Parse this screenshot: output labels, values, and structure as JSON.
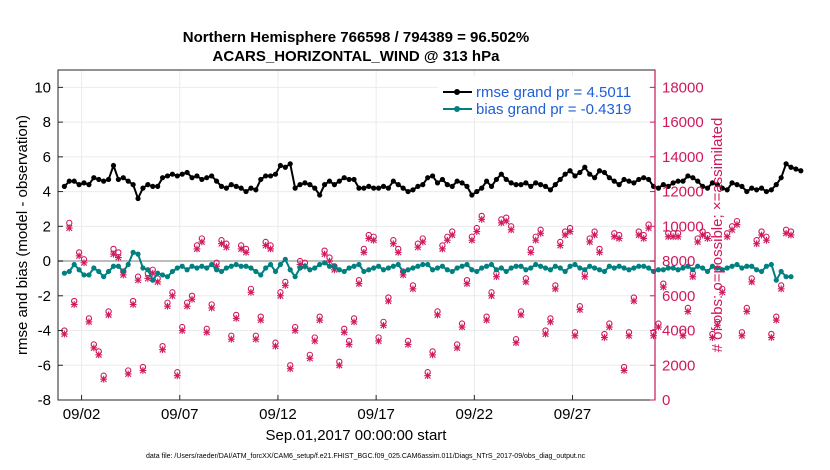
{
  "chart_data": {
    "type": "line",
    "title": "Northern Hemisphere 766598 / 794389 = 96.502%",
    "subtitle": "ACARS_HORIZONTAL_WIND @ 313 hPa",
    "xlabel": "Sep.01,2017 00:00:00 start",
    "ylabel_left": "rmse and bias (model - observation)",
    "ylabel_right": "# of obs: o=possible; ×=assimilated",
    "footer": "data file: /Users/raeder/DAI/ATM_forcXX/CAM6_setup/f.e21.FHIST_BGC.f09_025.CAM6assim.011/Diags_NTrS_2017-09/obs_diag_output.nc",
    "xlim": [
      0.8,
      31.2
    ],
    "ylim_left": [
      -8,
      11
    ],
    "ylim_right": [
      0,
      19000
    ],
    "grid": true,
    "legend_position": "top-right",
    "x_ticks": [
      {
        "value": 2,
        "label": "09/02"
      },
      {
        "value": 7,
        "label": "09/07"
      },
      {
        "value": 12,
        "label": "09/12"
      },
      {
        "value": 17,
        "label": "09/17"
      },
      {
        "value": 22,
        "label": "09/22"
      },
      {
        "value": 27,
        "label": "09/27"
      }
    ],
    "y_ticks_left": [
      -8,
      -6,
      -4,
      -2,
      0,
      2,
      4,
      6,
      8,
      10
    ],
    "y_ticks_right": [
      0,
      2000,
      4000,
      6000,
      8000,
      10000,
      12000,
      14000,
      16000,
      18000
    ],
    "x_start": 1.125,
    "x_step": 0.25,
    "series": [
      {
        "name": "rmse grand pr = 4.5011",
        "color": "#000000",
        "axis": "left",
        "values": [
          4.3,
          4.6,
          4.6,
          4.4,
          4.5,
          4.4,
          4.8,
          4.7,
          4.6,
          4.7,
          5.5,
          4.7,
          4.8,
          4.6,
          4.4,
          3.6,
          4.2,
          4.4,
          4.3,
          4.3,
          4.8,
          4.9,
          5.0,
          4.9,
          5.0,
          5.1,
          4.8,
          4.9,
          4.7,
          4.8,
          4.9,
          4.6,
          4.3,
          4.2,
          4.4,
          4.3,
          4.2,
          4.0,
          4.2,
          4.1,
          4.7,
          4.9,
          4.9,
          5.0,
          5.5,
          5.4,
          5.6,
          4.2,
          4.4,
          4.5,
          4.4,
          4.2,
          3.8,
          4.4,
          4.6,
          4.4,
          4.6,
          4.8,
          4.7,
          4.7,
          4.2,
          4.2,
          4.3,
          4.2,
          4.2,
          4.3,
          4.2,
          4.6,
          4.4,
          4.2,
          4.0,
          4.1,
          4.3,
          4.4,
          4.8,
          4.9,
          4.5,
          4.7,
          4.4,
          4.3,
          4.6,
          4.5,
          4.3,
          3.8,
          4.0,
          4.2,
          4.6,
          4.3,
          4.7,
          5.0,
          4.7,
          4.5,
          4.4,
          4.4,
          4.5,
          4.3,
          4.5,
          4.4,
          4.3,
          4.1,
          4.4,
          4.7,
          5.0,
          5.2,
          4.9,
          5.1,
          5.4,
          5.0,
          4.8,
          5.2,
          5.1,
          4.8,
          4.6,
          4.4,
          4.7,
          4.6,
          4.5,
          4.7,
          4.8,
          4.7,
          4.3,
          4.2,
          4.4,
          4.3,
          4.5,
          4.6,
          4.6,
          4.9,
          4.8,
          4.6,
          4.3,
          4.2,
          4.5,
          4.4,
          4.2,
          4.1,
          4.5,
          4.4,
          4.3,
          4.0,
          4.2,
          4.1,
          4.2,
          4.0,
          4.1,
          4.4,
          4.8,
          5.6,
          5.4,
          5.3,
          5.2
        ],
        "markers": "filled-circle"
      },
      {
        "name": "bias grand pr = -0.4319",
        "color": "#008080",
        "axis": "left",
        "values": [
          -0.7,
          -0.6,
          -0.2,
          -0.5,
          -0.8,
          -0.8,
          -0.4,
          -0.6,
          -0.9,
          -0.6,
          -0.3,
          -0.3,
          -0.6,
          -0.2,
          0.5,
          0.4,
          -0.4,
          -0.5,
          -1.1,
          -0.7,
          -0.8,
          -0.9,
          -0.6,
          -0.4,
          -0.3,
          -0.5,
          -0.3,
          -0.4,
          -0.3,
          -0.4,
          -0.2,
          -0.5,
          -0.6,
          -0.4,
          -0.3,
          -0.2,
          -0.3,
          -0.3,
          -0.4,
          -0.6,
          -0.8,
          -0.4,
          -0.2,
          -0.6,
          -0.2,
          0.1,
          -0.5,
          -0.9,
          -0.4,
          -0.3,
          -0.5,
          -0.4,
          -0.2,
          -0.1,
          -0.3,
          -0.3,
          -0.5,
          -0.6,
          -0.4,
          -0.3,
          -0.2,
          -0.6,
          -0.5,
          -0.4,
          -0.3,
          -0.5,
          -0.4,
          -0.3,
          -0.2,
          -0.6,
          -0.5,
          -0.4,
          -0.3,
          -0.2,
          -0.2,
          -0.5,
          -0.4,
          -0.3,
          -0.5,
          -0.6,
          -0.4,
          -0.3,
          -0.2,
          -0.5,
          -0.6,
          -0.4,
          -0.3,
          -0.2,
          -0.5,
          -0.4,
          -0.6,
          -0.4,
          -0.3,
          -0.3,
          -0.5,
          -0.4,
          -0.2,
          -0.3,
          -0.4,
          -0.5,
          -0.3,
          -0.4,
          -0.6,
          -0.3,
          -0.2,
          -0.4,
          -0.5,
          -0.3,
          -0.4,
          -0.5,
          -0.6,
          -0.3,
          -0.4,
          -0.3,
          -0.4,
          -0.5,
          -0.4,
          -0.3,
          -0.3,
          -0.4,
          -0.6,
          -0.5,
          -0.5,
          -0.4,
          -0.4,
          -0.5,
          -0.4,
          -0.3,
          -0.5,
          -0.3,
          -0.4,
          -0.6,
          -0.3,
          -0.4,
          -0.5,
          -0.4,
          -0.3,
          -0.2,
          -0.4,
          -0.3,
          -0.3,
          -0.5,
          -0.6,
          -0.3,
          -0.2,
          -1.1,
          -0.6,
          -0.9,
          -0.9
        ],
        "markers": "filled-circle"
      },
      {
        "name": "obs possible",
        "color": "#d1185d",
        "axis": "right",
        "marker": "o",
        "values": [
          4000,
          10200,
          5700,
          8500,
          8100,
          4700,
          3200,
          2800,
          1400,
          5100,
          8700,
          8500,
          7400,
          1700,
          5700,
          7100,
          1900,
          7300,
          7500,
          7000,
          3100,
          5600,
          6200,
          1600,
          4200,
          5600,
          6000,
          8900,
          9300,
          4100,
          5500,
          7900,
          9200,
          9000,
          3700,
          4900,
          8900,
          8700,
          6400,
          3700,
          4800,
          9100,
          8900,
          3300,
          6200,
          6800,
          2000,
          4200,
          8000,
          7900,
          2600,
          3600,
          4800,
          8600,
          8200,
          7700,
          2200,
          4100,
          3400,
          4700,
          6900,
          8700,
          9500,
          9400,
          3600,
          4500,
          5900,
          9200,
          8700,
          7400,
          3400,
          6600,
          9000,
          9300,
          1600,
          2800,
          5100,
          8900,
          9400,
          9700,
          3200,
          4400,
          6900,
          9400,
          9900,
          10600,
          4800,
          6200,
          7300,
          10400,
          10500,
          10000,
          3500,
          5100,
          7000,
          8700,
          9400,
          9800,
          4000,
          4700,
          6600,
          9100,
          9700,
          9900,
          3900,
          5400,
          7300,
          9300,
          9700,
          8700,
          3800,
          4400,
          9600,
          9500,
          1900,
          3900,
          5900,
          9700,
          9500,
          10100,
          3900,
          4400,
          6700,
          9600,
          9600,
          9600,
          3900,
          5300,
          7300,
          9300,
          9700,
          9500,
          3800,
          4500,
          6400,
          9600,
          10000,
          10300,
          3900,
          5300,
          7000,
          9200,
          9700,
          9400,
          3800,
          4800,
          6600,
          9800,
          9700
        ],
        "assimilated_values": [
          3800,
          9900,
          5500,
          8300,
          7900,
          4500,
          3000,
          2600,
          1200,
          4900,
          8400,
          8200,
          7200,
          1500,
          5500,
          6900,
          1700,
          7000,
          7300,
          6800,
          2900,
          5400,
          6000,
          1400,
          4000,
          5400,
          5800,
          8700,
          9100,
          3900,
          5300,
          7700,
          9000,
          8800,
          3500,
          4700,
          8700,
          8500,
          6200,
          3500,
          4600,
          8900,
          8700,
          3100,
          6000,
          6600,
          1800,
          4000,
          7800,
          7700,
          2400,
          3400,
          4600,
          8400,
          8000,
          7500,
          2000,
          3900,
          3200,
          4500,
          6700,
          8500,
          9300,
          9200,
          3400,
          4300,
          5700,
          9000,
          8500,
          7200,
          3200,
          6400,
          8800,
          9100,
          1400,
          2600,
          4900,
          8700,
          9200,
          9500,
          3000,
          4200,
          6700,
          9200,
          9700,
          10400,
          4600,
          6000,
          7100,
          10200,
          10300,
          9800,
          3300,
          4900,
          6800,
          8500,
          9200,
          9600,
          3800,
          4500,
          6400,
          8900,
          9500,
          9700,
          3700,
          5200,
          7100,
          9100,
          9500,
          8500,
          3600,
          4200,
          9400,
          9300,
          1700,
          3700,
          5700,
          9500,
          9300,
          9900,
          3700,
          4200,
          6500,
          9400,
          9400,
          9400,
          3700,
          5100,
          7100,
          9100,
          9500,
          9300,
          3600,
          4300,
          6200,
          9400,
          9800,
          10100,
          3700,
          5100,
          6800,
          9000,
          9500,
          9200,
          3600,
          4600,
          6400,
          9600,
          9500
        ]
      }
    ]
  }
}
